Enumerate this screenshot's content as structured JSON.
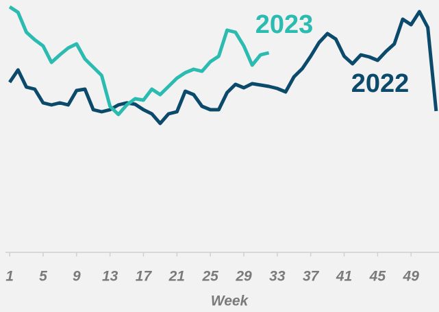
{
  "chart_data": {
    "type": "line",
    "x": [
      1,
      2,
      3,
      4,
      5,
      6,
      7,
      8,
      9,
      10,
      11,
      12,
      13,
      14,
      15,
      16,
      17,
      18,
      19,
      20,
      21,
      22,
      23,
      24,
      25,
      26,
      27,
      28,
      29,
      30,
      31,
      32,
      33,
      34,
      35,
      36,
      37,
      38,
      39,
      40,
      41,
      42,
      43,
      44,
      45,
      46,
      47,
      48,
      49,
      50,
      51,
      52
    ],
    "xlim": [
      0.5,
      52.3
    ],
    "xticks": [
      1,
      5,
      9,
      13,
      17,
      21,
      25,
      29,
      33,
      37,
      41,
      45,
      49
    ],
    "xlabel": "Week",
    "ylim": [
      0,
      368
    ],
    "series": [
      {
        "name": "2022",
        "color": "#0b4a6b",
        "values": [
          248,
          266,
          241,
          238,
          218,
          215,
          218,
          215,
          236,
          238,
          208,
          205,
          208,
          215,
          218,
          216,
          208,
          202,
          188,
          202,
          205,
          235,
          230,
          213,
          208,
          208,
          233,
          245,
          240,
          246,
          244,
          242,
          239,
          234,
          256,
          268,
          286,
          306,
          319,
          311,
          286,
          275,
          288,
          285,
          280,
          293,
          304,
          340,
          332,
          351,
          328,
          206
        ]
      },
      {
        "name": "2023",
        "color": "#2bbbb0",
        "values": [
          358,
          350,
          321,
          310,
          301,
          277,
          288,
          298,
          304,
          282,
          270,
          258,
          213,
          201,
          215,
          224,
          222,
          238,
          230,
          242,
          254,
          262,
          267,
          264,
          278,
          286,
          324,
          321,
          301,
          273,
          288,
          291,
          null,
          null,
          null,
          null,
          null,
          null,
          null,
          null,
          null,
          null,
          null,
          null,
          null,
          null,
          null,
          null,
          null,
          null,
          null,
          null
        ]
      }
    ]
  }
}
